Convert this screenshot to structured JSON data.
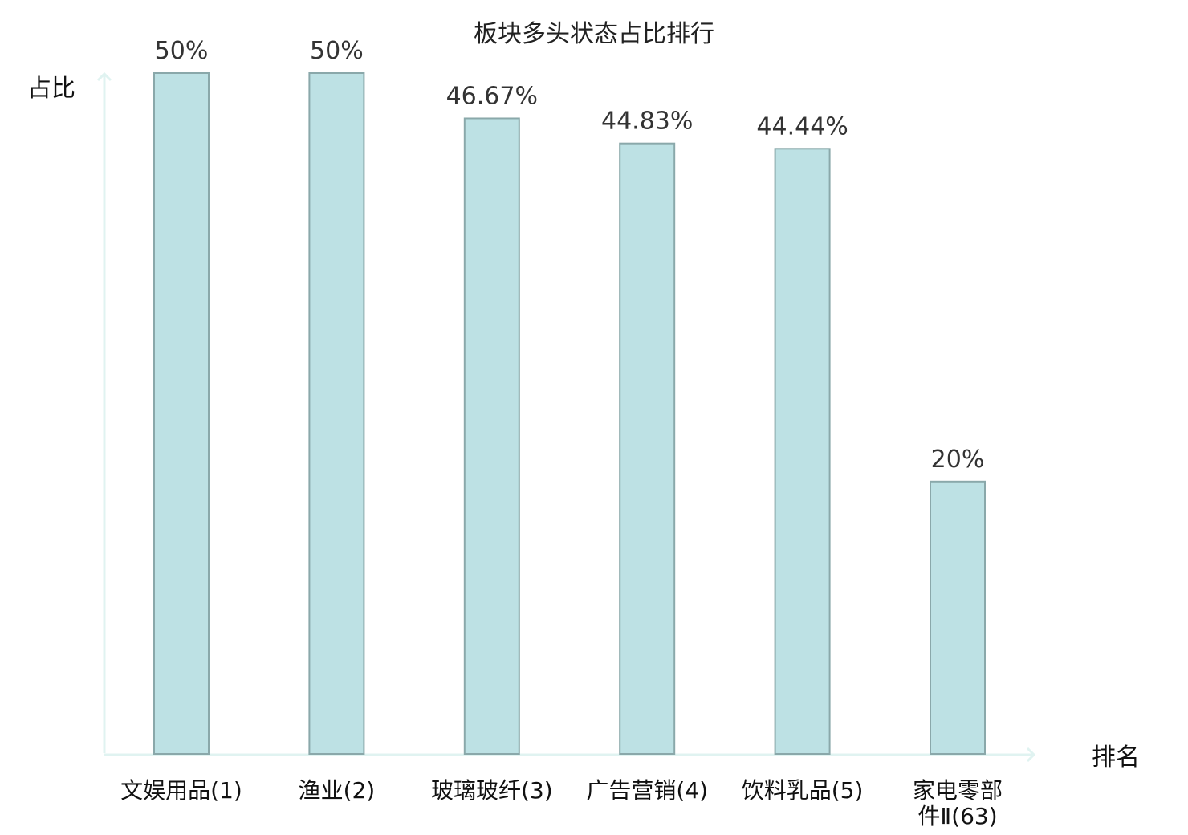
{
  "chart_data": {
    "type": "bar",
    "title": "板块多头状态占比排行",
    "ylabel": "占比",
    "xlabel": "排名",
    "categories": [
      [
        "文娱用品(1)"
      ],
      [
        "渔业(2)"
      ],
      [
        "玻璃玻纤(3)"
      ],
      [
        "广告营销(4)"
      ],
      [
        "饮料乳品(5)"
      ],
      [
        "家电零部",
        "件Ⅱ(63)"
      ]
    ],
    "values": [
      50,
      50,
      46.67,
      44.83,
      44.44,
      20
    ],
    "value_labels": [
      "50%",
      "50%",
      "46.67%",
      "44.83%",
      "44.44%",
      "20%"
    ],
    "ylim": [
      0,
      50
    ],
    "highlight_index": 5,
    "grid": false,
    "colors": {
      "bar_fill": "#bde1e4",
      "bar_stroke": "#8aa8aa",
      "axis": "#e0f3f1",
      "highlight_label": "#d81e1e",
      "label": "#111111"
    }
  }
}
